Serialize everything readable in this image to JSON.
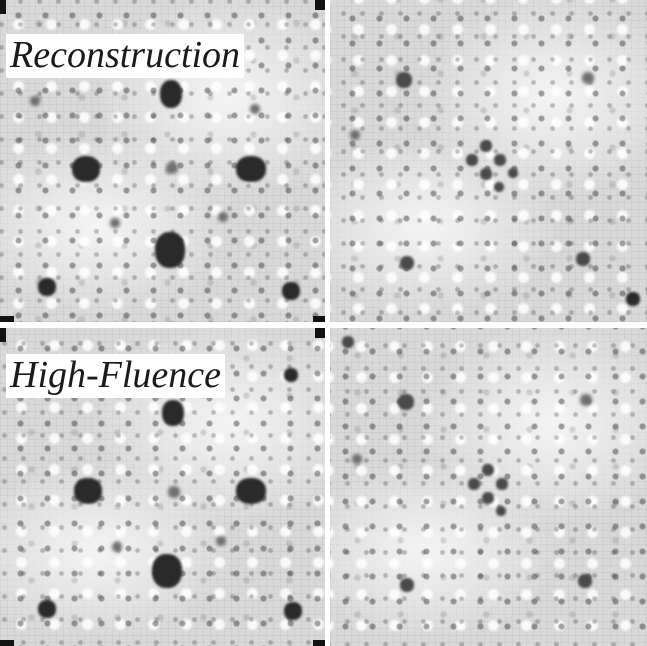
{
  "panels": [
    {
      "label": "Reconstruction"
    },
    {
      "label": ""
    },
    {
      "label": "High-Fluence"
    },
    {
      "label": ""
    }
  ]
}
